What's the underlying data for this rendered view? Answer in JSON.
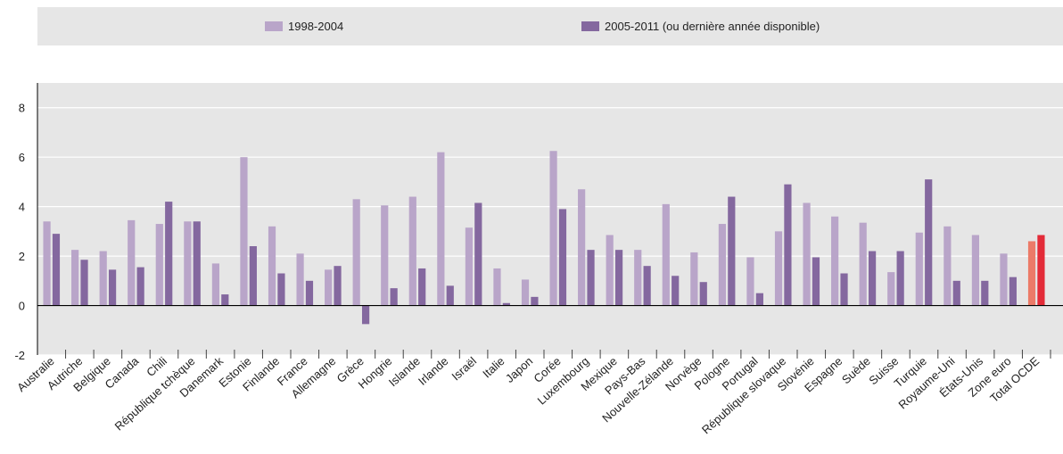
{
  "chart_data": {
    "type": "bar",
    "title": "",
    "xlabel": "",
    "ylabel": "",
    "ylim": [
      -2,
      9
    ],
    "yticks": [
      -2,
      0,
      2,
      4,
      6,
      8
    ],
    "grid": "horizontal",
    "legend_position": "top",
    "categories": [
      "Australie",
      "Autriche",
      "Belgique",
      "Canada",
      "Chili",
      "République tchèque",
      "Danemark",
      "Estonie",
      "Finlande",
      "France",
      "Allemagne",
      "Grèce",
      "Hongrie",
      "Islande",
      "Irlande",
      "Israël",
      "Italie",
      "Japon",
      "Corée",
      "Luxembourg",
      "Mexique",
      "Pays-Bas",
      "Nouvelle-Zélande",
      "Norvège",
      "Pologne",
      "Portugal",
      "République slovaque",
      "Slovénie",
      "Espagne",
      "Suède",
      "Suisse",
      "Turquie",
      "Royaume-Uni",
      "États-Unis",
      "Zone euro",
      "Total OCDE"
    ],
    "series": [
      {
        "name": "1998-2004",
        "color": "#b9a5c9",
        "highlight_color": "#ec7a68",
        "values": [
          3.4,
          2.25,
          2.2,
          3.45,
          3.3,
          3.4,
          1.7,
          6.0,
          3.2,
          2.1,
          1.45,
          4.3,
          4.05,
          4.4,
          6.2,
          3.15,
          1.5,
          1.05,
          6.25,
          4.7,
          2.85,
          2.25,
          4.1,
          2.15,
          3.3,
          1.95,
          3.0,
          4.15,
          3.6,
          3.35,
          1.35,
          2.95,
          3.2,
          2.85,
          2.1,
          2.6
        ]
      },
      {
        "name": "2005-2011 (ou dernière année disponible)",
        "color": "#84689f",
        "highlight_color": "#e32b38",
        "values": [
          2.9,
          1.85,
          1.45,
          1.55,
          4.2,
          3.4,
          0.45,
          2.4,
          1.3,
          1.0,
          1.6,
          -0.75,
          0.7,
          1.5,
          0.8,
          4.15,
          0.1,
          0.35,
          3.9,
          2.25,
          2.25,
          1.6,
          1.2,
          0.95,
          4.4,
          0.5,
          4.9,
          1.95,
          1.3,
          2.2,
          2.2,
          5.1,
          1.0,
          1.0,
          1.15,
          2.85
        ]
      }
    ]
  }
}
